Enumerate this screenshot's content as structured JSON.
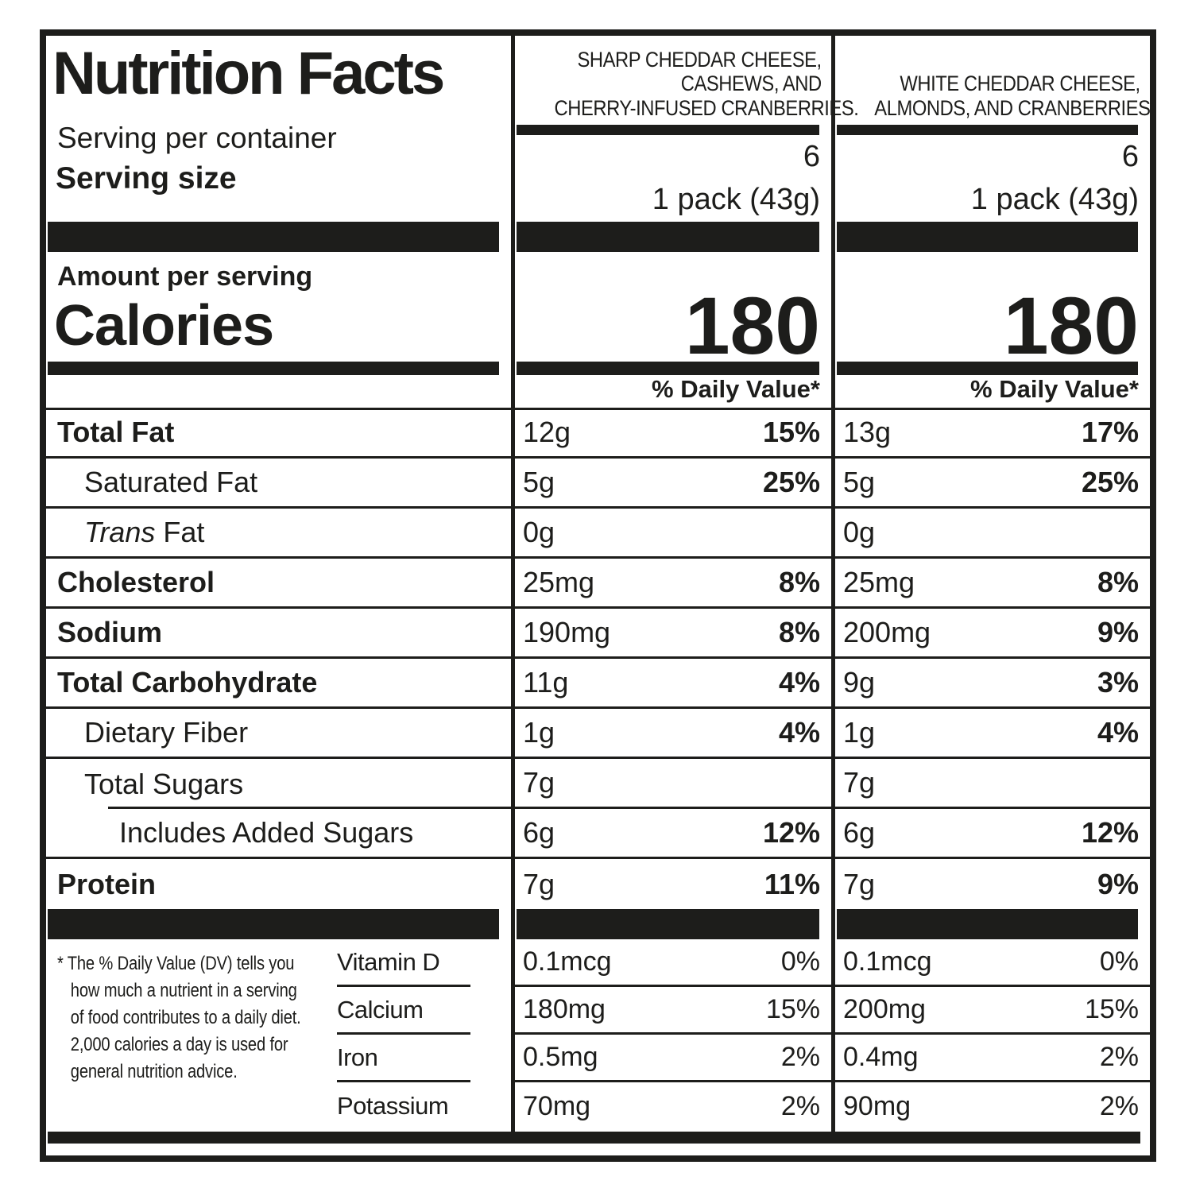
{
  "colors": {
    "ink": "#1d1d1b",
    "paper": "#ffffff"
  },
  "label": {
    "title": "Nutrition Facts",
    "serving_per_container_label": "Serving per container",
    "serving_size_label": "Serving size",
    "amount_per_serving_label": "Amount per serving",
    "calories_label": "Calories",
    "daily_value_header": "% Daily Value*",
    "footnote_lines": [
      "* The % Daily Value (DV) tells you",
      "how much a nutrient in a serving",
      "of food contributes to a daily diet.",
      "2,000 calories a day is used for",
      "general nutrition advice."
    ]
  },
  "products": [
    {
      "name_lines": [
        "SHARP CHEDDAR CHEESE,",
        "CASHEWS, AND",
        "CHERRY-INFUSED CRANBERRIES."
      ],
      "servings_per_container": "6",
      "serving_size": "1 pack (43g)",
      "calories": "180"
    },
    {
      "name_lines": [
        "WHITE CHEDDAR CHEESE,",
        "ALMONDS, AND CRANBERRIES."
      ],
      "servings_per_container": "6",
      "serving_size": "1 pack (43g)",
      "calories": "180"
    }
  ],
  "nutrients": [
    {
      "label": "Total Fat",
      "p1": {
        "amount": "12g",
        "dv": "15%"
      },
      "p2": {
        "amount": "13g",
        "dv": "17%"
      }
    },
    {
      "label": "Saturated Fat",
      "p1": {
        "amount": "5g",
        "dv": "25%"
      },
      "p2": {
        "amount": "5g",
        "dv": "25%"
      }
    },
    {
      "label_italic": "Trans",
      "label_rest": "Fat",
      "p1": {
        "amount": "0g",
        "dv": ""
      },
      "p2": {
        "amount": "0g",
        "dv": ""
      }
    },
    {
      "label": "Cholesterol",
      "p1": {
        "amount": "25mg",
        "dv": "8%"
      },
      "p2": {
        "amount": "25mg",
        "dv": "8%"
      }
    },
    {
      "label": "Sodium",
      "p1": {
        "amount": "190mg",
        "dv": "8%"
      },
      "p2": {
        "amount": "200mg",
        "dv": "9%"
      }
    },
    {
      "label": "Total Carbohydrate",
      "p1": {
        "amount": "11g",
        "dv": "4%"
      },
      "p2": {
        "amount": "9g",
        "dv": "3%"
      }
    },
    {
      "label": "Dietary Fiber",
      "p1": {
        "amount": "1g",
        "dv": "4%"
      },
      "p2": {
        "amount": "1g",
        "dv": "4%"
      }
    },
    {
      "label": "Total Sugars",
      "p1": {
        "amount": "7g",
        "dv": ""
      },
      "p2": {
        "amount": "7g",
        "dv": ""
      }
    },
    {
      "label": "Includes Added Sugars",
      "p1": {
        "amount": "6g",
        "dv": "12%"
      },
      "p2": {
        "amount": "6g",
        "dv": "12%"
      }
    },
    {
      "label": "Protein",
      "p1": {
        "amount": "7g",
        "dv": "11%"
      },
      "p2": {
        "amount": "7g",
        "dv": "9%"
      }
    }
  ],
  "micronutrients": [
    {
      "label": "Vitamin D",
      "p1": {
        "amount": "0.1mcg",
        "dv": "0%"
      },
      "p2": {
        "amount": "0.1mcg",
        "dv": "0%"
      }
    },
    {
      "label": "Calcium",
      "p1": {
        "amount": "180mg",
        "dv": "15%"
      },
      "p2": {
        "amount": "200mg",
        "dv": "15%"
      }
    },
    {
      "label": "Iron",
      "p1": {
        "amount": "0.5mg",
        "dv": "2%"
      },
      "p2": {
        "amount": "0.4mg",
        "dv": "2%"
      }
    },
    {
      "label": "Potassium",
      "p1": {
        "amount": "70mg",
        "dv": "2%"
      },
      "p2": {
        "amount": "90mg",
        "dv": "2%"
      }
    }
  ]
}
